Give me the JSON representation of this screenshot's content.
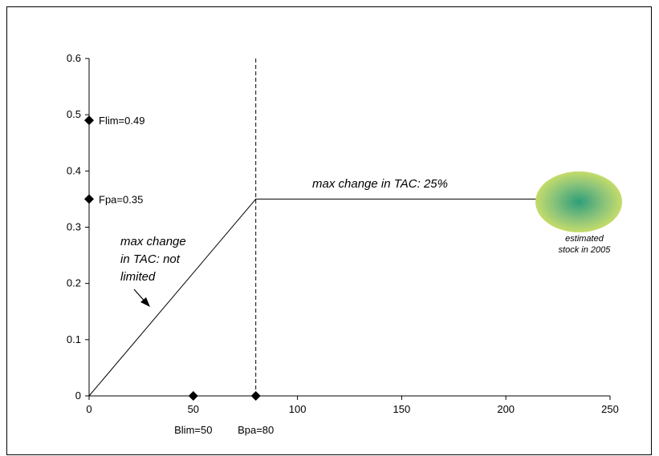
{
  "chart_data": {
    "type": "line",
    "xlim": [
      0,
      250
    ],
    "ylim": [
      0,
      0.6
    ],
    "x_ticks": [
      "0",
      "50",
      "100",
      "150",
      "200",
      "250"
    ],
    "y_ticks": [
      "0",
      "0.1",
      "0.2",
      "0.3",
      "0.4",
      "0.5",
      "0.6"
    ],
    "x_tick_values": [
      0,
      50,
      100,
      150,
      200,
      250
    ],
    "y_tick_values": [
      0,
      0.1,
      0.2,
      0.3,
      0.4,
      0.5,
      0.6
    ],
    "grid": false,
    "rule_line": {
      "x": [
        0,
        80,
        215
      ],
      "y": [
        0,
        0.35,
        0.35
      ]
    },
    "vertical_reference": {
      "x": 80
    },
    "reference_points": [
      {
        "label": "Flim=0.49",
        "x": 0,
        "y": 0.49
      },
      {
        "label": "Fpa=0.35",
        "x": 0,
        "y": 0.35
      },
      {
        "label": "Blim=50",
        "x": 50,
        "y": 0
      },
      {
        "label": "Bpa=80",
        "x": 80,
        "y": 0
      }
    ],
    "annotations": {
      "max_change_limited": "max change in TAC: 25%",
      "max_change_unlimited_lines": [
        "max change",
        "in TAC: not",
        "limited"
      ],
      "stock_estimate_lines": [
        "estimated",
        "stock in 2005"
      ]
    },
    "stock_estimate_center": {
      "x": 235,
      "y": 0.345
    },
    "colors": {
      "line": "#000000",
      "stock_center": "#2e9e7a",
      "stock_edge": "#c4dc6a"
    }
  }
}
